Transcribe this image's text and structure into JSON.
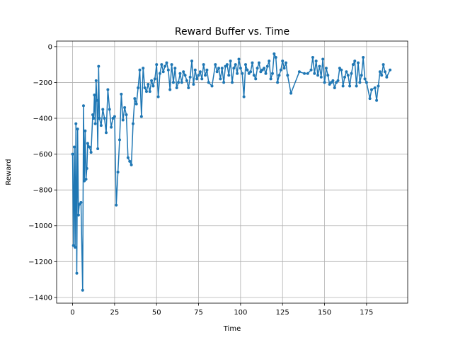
{
  "chart_data": {
    "type": "line",
    "title": "Reward Buffer vs. Time",
    "x_label": "Time",
    "y_label": "Reward",
    "x": [
      0,
      0.5,
      1,
      1.5,
      2,
      2.5,
      3,
      3.5,
      4,
      5,
      6,
      6.5,
      7,
      7.5,
      8,
      8.5,
      9,
      10,
      11,
      12,
      12.5,
      13,
      13.5,
      14,
      14.5,
      15,
      15.5,
      16,
      17,
      18,
      19,
      20,
      21,
      22,
      23,
      24,
      25,
      26,
      27,
      28,
      29,
      30,
      31,
      32,
      33,
      34,
      35,
      36,
      37,
      38,
      39,
      40,
      41,
      42,
      43,
      44,
      45,
      46,
      47,
      48,
      49,
      50,
      51,
      52,
      53,
      54,
      55,
      56,
      57,
      58,
      59,
      60,
      61,
      62,
      63,
      64,
      65,
      66,
      67,
      68,
      69,
      70,
      71,
      72,
      73,
      74,
      75,
      76,
      77,
      78,
      79,
      80,
      81,
      83,
      85,
      86,
      87,
      88,
      89,
      90,
      91,
      92,
      93,
      94,
      95,
      96,
      97,
      98,
      99,
      100,
      101,
      102,
      103,
      104,
      105,
      106,
      107,
      108,
      109,
      110,
      111,
      112,
      113,
      114,
      115,
      116,
      117,
      118,
      119,
      120,
      121,
      122,
      123,
      124,
      125,
      126,
      127,
      128,
      130,
      135,
      138,
      140,
      142,
      143,
      144,
      145,
      146,
      147,
      148,
      149,
      150,
      151,
      152,
      153,
      154,
      155,
      156,
      157,
      158,
      159,
      160,
      161,
      162,
      163,
      164,
      165,
      166,
      167,
      168,
      169,
      170,
      171,
      172,
      173,
      174,
      175,
      177,
      178,
      180,
      181,
      182,
      183,
      184,
      185,
      186,
      187,
      189
    ],
    "series": [
      {
        "name": "Reward",
        "color": "#1f77b4",
        "values": [
          -600,
          -1110,
          -560,
          -1120,
          -430,
          -1265,
          -460,
          -940,
          -880,
          -870,
          -1360,
          -330,
          -750,
          -470,
          -740,
          -680,
          -540,
          -560,
          -590,
          -380,
          -400,
          -270,
          -430,
          -190,
          -300,
          -570,
          -110,
          -400,
          -440,
          -350,
          -400,
          -480,
          -240,
          -350,
          -450,
          -400,
          -390,
          -885,
          -700,
          -520,
          -265,
          -410,
          -340,
          -380,
          -620,
          -640,
          -660,
          -430,
          -290,
          -320,
          -230,
          -130,
          -390,
          -120,
          -230,
          -250,
          -210,
          -250,
          -190,
          -220,
          -180,
          -100,
          -280,
          -150,
          -100,
          -140,
          -110,
          -90,
          -130,
          -240,
          -100,
          -200,
          -120,
          -230,
          -200,
          -150,
          -200,
          -140,
          -160,
          -190,
          -230,
          -170,
          -80,
          -210,
          -130,
          -180,
          -160,
          -140,
          -180,
          -100,
          -160,
          -130,
          -200,
          -220,
          -100,
          -140,
          -120,
          -180,
          -120,
          -200,
          -110,
          -100,
          -160,
          -80,
          -200,
          -120,
          -100,
          -150,
          -70,
          -120,
          -150,
          -280,
          -100,
          -130,
          -150,
          -140,
          -90,
          -160,
          -180,
          -120,
          -90,
          -140,
          -130,
          -120,
          -150,
          -110,
          -80,
          -180,
          -150,
          -40,
          -60,
          -200,
          -160,
          -130,
          -80,
          -120,
          -90,
          -160,
          -260,
          -140,
          -150,
          -150,
          -130,
          -60,
          -150,
          -80,
          -160,
          -110,
          -170,
          -70,
          -200,
          -120,
          -160,
          -210,
          -200,
          -190,
          -230,
          -200,
          -190,
          -120,
          -130,
          -220,
          -170,
          -140,
          -160,
          -220,
          -150,
          -100,
          -80,
          -220,
          -90,
          -200,
          -160,
          -60,
          -180,
          -200,
          -290,
          -240,
          -230,
          -300,
          -220,
          -140,
          -160,
          -100,
          -140,
          -170,
          -130
        ]
      }
    ],
    "xlim": [
      -9.5,
      199.5
    ],
    "ylim": [
      -1432,
      31
    ],
    "xticks": [
      0,
      25,
      50,
      75,
      100,
      125,
      150,
      175
    ],
    "yticks": [
      {
        "value": -1400,
        "label": "−1400"
      },
      {
        "value": -1200,
        "label": "−1200"
      },
      {
        "value": -1000,
        "label": "−1000"
      },
      {
        "value": -800,
        "label": "−800"
      },
      {
        "value": -600,
        "label": "−600"
      },
      {
        "value": -400,
        "label": "−400"
      },
      {
        "value": -200,
        "label": "−200"
      },
      0
    ],
    "grid": true
  }
}
